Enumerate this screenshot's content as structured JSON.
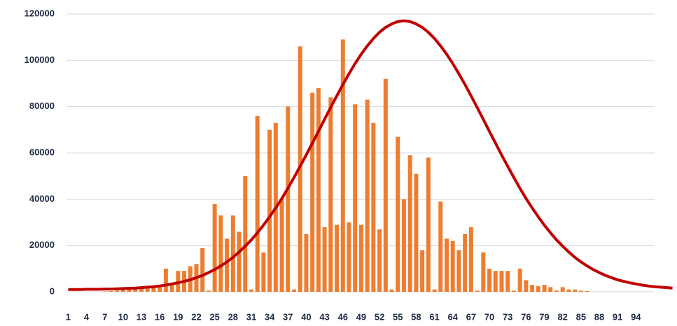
{
  "chart_data": {
    "type": "bar",
    "categories": [
      1,
      null,
      null,
      4,
      null,
      null,
      7,
      null,
      null,
      10,
      null,
      null,
      13,
      null,
      null,
      16,
      null,
      null,
      19,
      null,
      null,
      22,
      null,
      null,
      25,
      null,
      null,
      28,
      null,
      null,
      31,
      null,
      null,
      34,
      null,
      null,
      37,
      null,
      null,
      40,
      null,
      null,
      43,
      null,
      null,
      46,
      null,
      null,
      49,
      null,
      null,
      52,
      null,
      null,
      55,
      null,
      null,
      58,
      null,
      null,
      61,
      null,
      null,
      64,
      null,
      null,
      67,
      null,
      null,
      70,
      null,
      null,
      73,
      null,
      null,
      76,
      null,
      null,
      79,
      null,
      null,
      82,
      null,
      null,
      85,
      null,
      null,
      88,
      null,
      null,
      91,
      null,
      null,
      94,
      null,
      null,
      null,
      null,
      null,
      null
    ],
    "series": [
      {
        "type": "bar",
        "color": "#ed7d31",
        "values": [
          0,
          0,
          0,
          0,
          0,
          0,
          200,
          300,
          500,
          800,
          1000,
          1500,
          1500,
          2000,
          2500,
          3000,
          10000,
          3000,
          9000,
          9000,
          11000,
          12000,
          19000,
          500,
          38000,
          33000,
          23000,
          33000,
          26000,
          50000,
          1000,
          76000,
          17000,
          70000,
          73000,
          40000,
          80000,
          1000,
          106000,
          25000,
          86000,
          88000,
          28000,
          84000,
          29000,
          109000,
          30000,
          81000,
          29000,
          83000,
          73000,
          27000,
          92000,
          1000,
          67000,
          40000,
          59000,
          51000,
          18000,
          58000,
          1000,
          39000,
          23000,
          22000,
          18000,
          25000,
          28000,
          500,
          17000,
          10000,
          9000,
          9000,
          9000,
          500,
          10000,
          5000,
          3000,
          2500,
          3000,
          2000,
          500,
          2000,
          1000,
          1000,
          500,
          300,
          0,
          0,
          0,
          0,
          0,
          0,
          0,
          0,
          0,
          0,
          0,
          0,
          0,
          0
        ]
      },
      {
        "type": "line",
        "color": "#c00000",
        "values": [
          1000,
          1000,
          1000,
          1100,
          1100,
          1100,
          1200,
          1200,
          1300,
          1400,
          1500,
          1600,
          1800,
          2000,
          2200,
          2500,
          2900,
          3400,
          3900,
          4500,
          5200,
          6100,
          7100,
          8300,
          9600,
          11200,
          12900,
          14900,
          17200,
          19700,
          22400,
          25500,
          28800,
          32400,
          36200,
          40300,
          44700,
          49400,
          54200,
          59100,
          64200,
          69300,
          74500,
          79600,
          84600,
          89500,
          94200,
          98600,
          102600,
          106200,
          109400,
          112100,
          114200,
          115700,
          116700,
          117000,
          116700,
          115700,
          114200,
          112100,
          109400,
          106200,
          102600,
          98600,
          94200,
          89500,
          84600,
          79600,
          74500,
          69300,
          64200,
          59100,
          54200,
          49400,
          44700,
          40300,
          36200,
          32400,
          28800,
          25500,
          22400,
          19700,
          17200,
          14900,
          12900,
          11200,
          9600,
          8300,
          7100,
          6100,
          5200,
          4500,
          3900,
          3400,
          2900,
          2500,
          2200,
          2000,
          1800,
          1600
        ]
      }
    ],
    "ylim": [
      0,
      120000
    ],
    "yticks": [
      0,
      20000,
      40000,
      60000,
      80000,
      100000,
      120000
    ],
    "grid": true
  }
}
